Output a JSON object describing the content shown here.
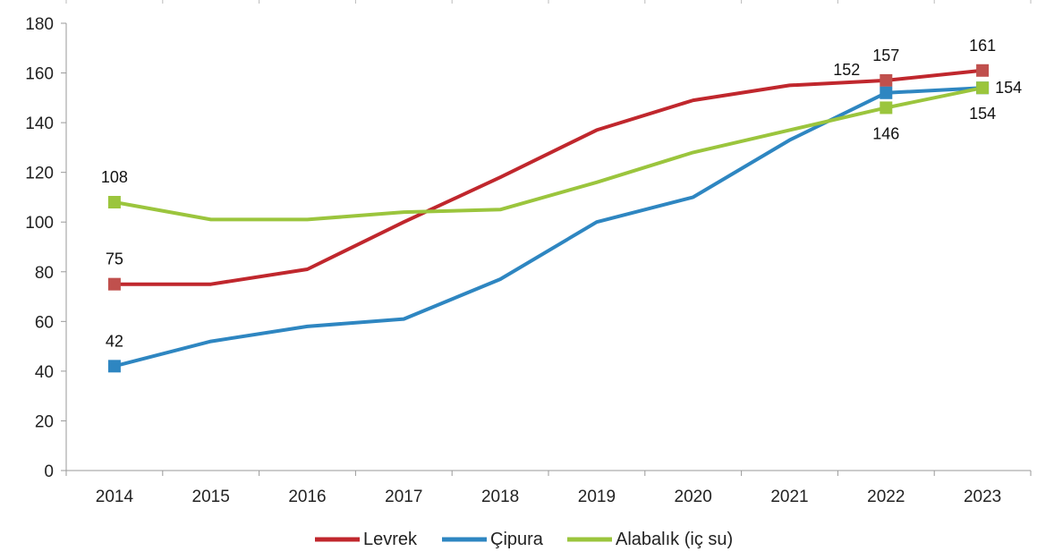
{
  "chart_data": {
    "type": "line",
    "categories": [
      "2014",
      "2015",
      "2016",
      "2017",
      "2018",
      "2019",
      "2020",
      "2021",
      "2022",
      "2023"
    ],
    "ylim": [
      0,
      180
    ],
    "yticks": [
      "0",
      "20",
      "40",
      "60",
      "80",
      "100",
      "120",
      "140",
      "160",
      "180"
    ],
    "grid": false,
    "legend_position": "bottom",
    "series": [
      {
        "name": "Levrek",
        "color": "#c0272d",
        "marker_color": "#c0504d",
        "values": [
          75,
          75,
          81,
          100,
          118,
          137,
          149,
          155,
          157,
          161
        ]
      },
      {
        "name": "Çipura",
        "color": "#2e86c1",
        "marker_color": "#2e86c1",
        "values": [
          42,
          52,
          58,
          61,
          77,
          100,
          110,
          133,
          152,
          154
        ]
      },
      {
        "name": "Alabalık (iç su)",
        "color": "#9bc53d",
        "marker_color": "#9bc53d",
        "values": [
          108,
          101,
          101,
          104,
          105,
          116,
          128,
          137,
          146,
          154
        ]
      }
    ],
    "data_labels": [
      {
        "series": 0,
        "index": 0,
        "text": "75",
        "pos": "above"
      },
      {
        "series": 1,
        "index": 0,
        "text": "42",
        "pos": "above"
      },
      {
        "series": 2,
        "index": 0,
        "text": "108",
        "pos": "above"
      },
      {
        "series": 0,
        "index": 8,
        "text": "157",
        "pos": "above"
      },
      {
        "series": 1,
        "index": 8,
        "text": "152",
        "pos": "left-above"
      },
      {
        "series": 2,
        "index": 8,
        "text": "146",
        "pos": "below"
      },
      {
        "series": 0,
        "index": 9,
        "text": "161",
        "pos": "above"
      },
      {
        "series": 1,
        "index": 9,
        "text": "154",
        "pos": "below"
      },
      {
        "series": 2,
        "index": 9,
        "text": "154",
        "pos": "right"
      }
    ]
  }
}
